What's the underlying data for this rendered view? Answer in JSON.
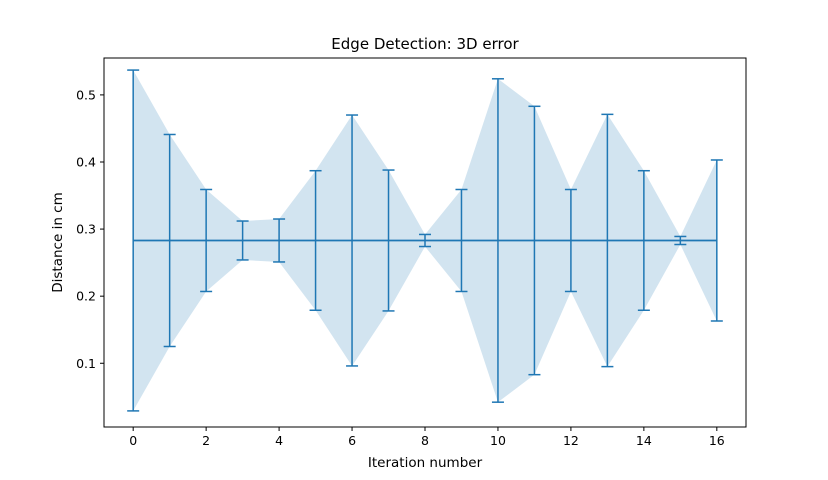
{
  "chart_data": {
    "type": "line",
    "title": "Edge Detection: 3D error",
    "xlabel": "Iteration number",
    "ylabel": "Distance in cm",
    "xlim": [
      -0.8,
      16.8
    ],
    "ylim": [
      0.005,
      0.555
    ],
    "xticks": [
      0,
      2,
      4,
      6,
      8,
      10,
      12,
      14,
      16
    ],
    "yticks": [
      0.1,
      0.2,
      0.3,
      0.4,
      0.5
    ],
    "ytick_labels": [
      "0.1",
      "0.2",
      "0.3",
      "0.4",
      "0.5"
    ],
    "grid": false,
    "line_color": "#1f77b4",
    "fill_color": "#1f77b4",
    "fill_alpha": 0.2,
    "series": [
      {
        "x": [
          0,
          1,
          2,
          3,
          4,
          5,
          6,
          7,
          8,
          9,
          10,
          11,
          12,
          13,
          14,
          15,
          16
        ],
        "mean": [
          0.283,
          0.283,
          0.283,
          0.283,
          0.283,
          0.283,
          0.283,
          0.283,
          0.283,
          0.283,
          0.283,
          0.283,
          0.283,
          0.283,
          0.283,
          0.283,
          0.283
        ],
        "error": [
          0.254,
          0.158,
          0.076,
          0.029,
          0.032,
          0.104,
          0.187,
          0.105,
          0.009,
          0.076,
          0.241,
          0.2,
          0.076,
          0.188,
          0.104,
          0.006,
          0.12
        ]
      }
    ]
  }
}
